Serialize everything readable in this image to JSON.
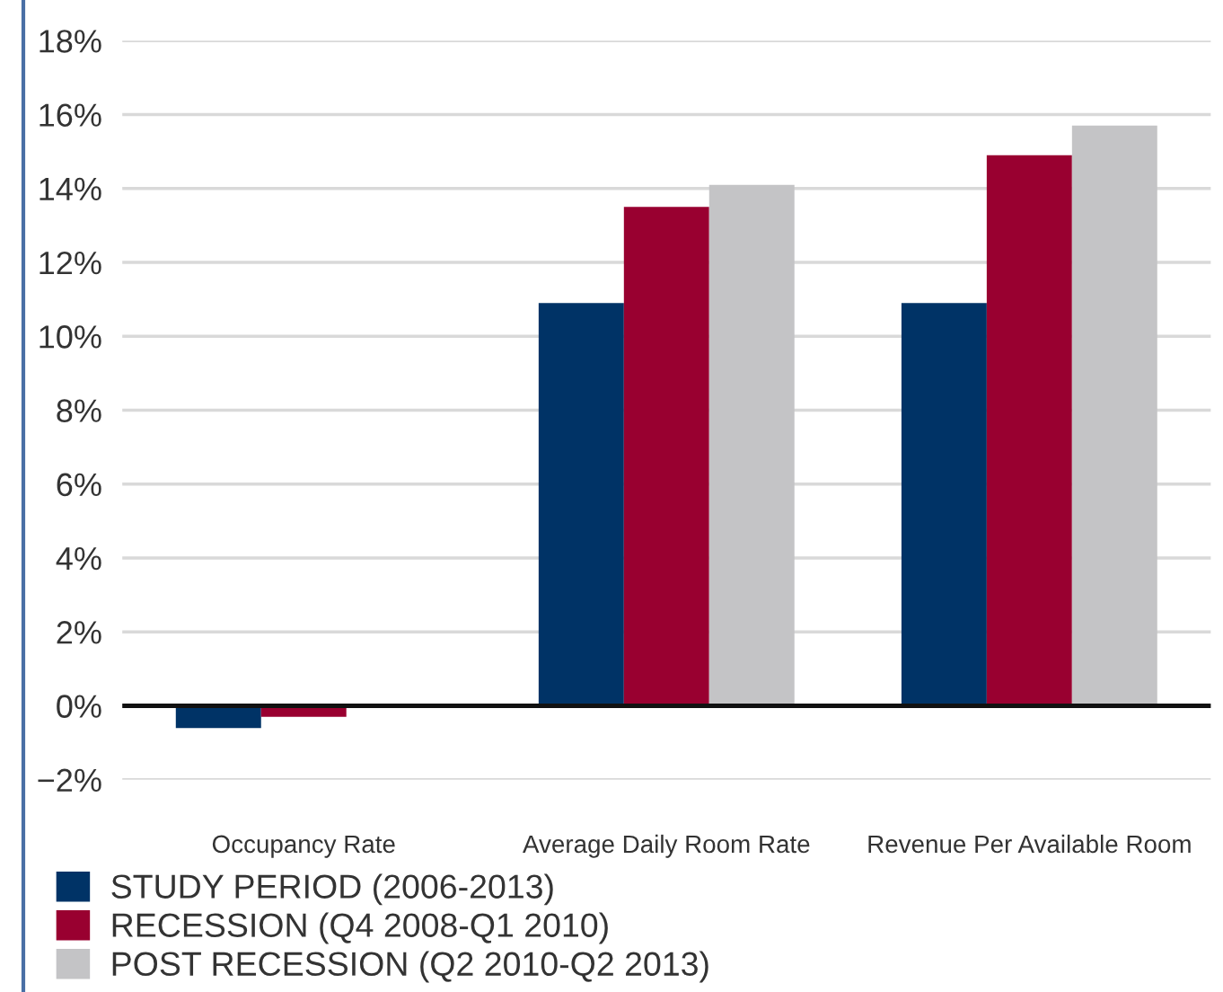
{
  "chart_data": {
    "type": "bar",
    "categories": [
      "Occupancy Rate",
      "Average Daily Room Rate",
      "Revenue Per Available Room"
    ],
    "series": [
      {
        "name": "STUDY PERIOD (2006-2013)",
        "color": "#003366",
        "values": [
          -0.6,
          10.9,
          10.9
        ]
      },
      {
        "name": "RECESSION (Q4 2008-Q1 2010)",
        "color": "#990030",
        "values": [
          -0.3,
          13.5,
          14.9
        ]
      },
      {
        "name": "POST RECESSION (Q2 2010-Q2 2013)",
        "color": "#c4c4c6",
        "values": [
          0,
          14.1,
          15.7
        ]
      }
    ],
    "ylim": [
      -2,
      18
    ],
    "yticks": [
      {
        "value": -2,
        "label": "−2%"
      },
      {
        "value": 0,
        "label": "0%"
      },
      {
        "value": 2,
        "label": "2%"
      },
      {
        "value": 4,
        "label": "4%"
      },
      {
        "value": 6,
        "label": "6%"
      },
      {
        "value": 8,
        "label": "8%"
      },
      {
        "value": 10,
        "label": "10%"
      },
      {
        "value": 12,
        "label": "12%"
      },
      {
        "value": 14,
        "label": "14%"
      },
      {
        "value": 16,
        "label": "16%"
      },
      {
        "value": 18,
        "label": "18%"
      }
    ],
    "grid": "y",
    "legend": "bottom left"
  }
}
